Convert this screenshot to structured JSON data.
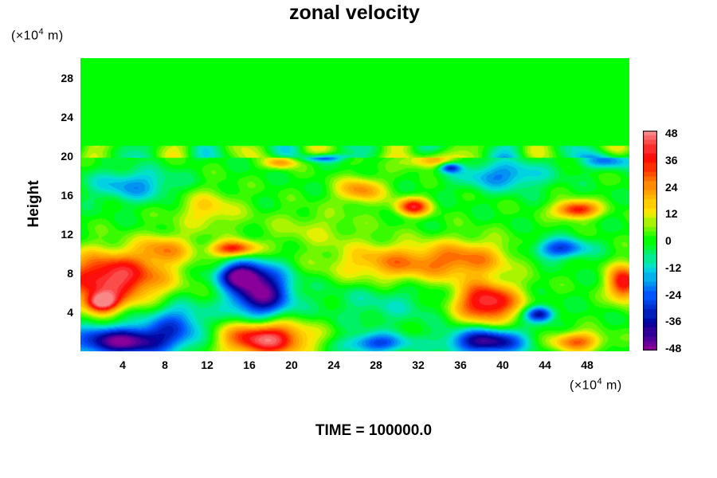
{
  "chart_data": {
    "type": "heatmap",
    "title": "zonal velocity",
    "ylabel": "Height",
    "y_unit": {
      "prefix": "(×10",
      "exp": "4",
      "suffix": " m)"
    },
    "x_unit": {
      "prefix": "(×10",
      "exp": "4",
      "suffix": " m)"
    },
    "footer": "TIME = 100000.0",
    "xlim": [
      0,
      52
    ],
    "ylim": [
      0,
      30
    ],
    "x_ticks": [
      4,
      8,
      12,
      16,
      20,
      24,
      28,
      32,
      36,
      40,
      44,
      48
    ],
    "y_ticks": [
      4,
      8,
      12,
      16,
      20,
      24,
      28
    ],
    "colorbar": {
      "range": [
        -48,
        48
      ],
      "ticks": [
        48,
        36,
        24,
        12,
        0,
        -12,
        -24,
        -36,
        -48
      ],
      "colors": [
        "#f88888",
        "#ff0000",
        "#ff8c00",
        "#ffee00",
        "#00ff00",
        "#00e0e0",
        "#0055ff",
        "#000099",
        "#880099"
      ]
    },
    "background_value": 0,
    "features": [
      {
        "x": 3,
        "y": 7.5,
        "value": 44,
        "rx": 5,
        "ry": 2.6
      },
      {
        "x": 2,
        "y": 5,
        "value": 42,
        "rx": 1.5,
        "ry": 1
      },
      {
        "x": 4,
        "y": 1,
        "value": -46,
        "rx": 5,
        "ry": 1.5
      },
      {
        "x": 17.5,
        "y": 1.3,
        "value": 46,
        "rx": 4,
        "ry": 1.8
      },
      {
        "x": 17,
        "y": 6,
        "value": -47,
        "rx": 2.8,
        "ry": 2.6
      },
      {
        "x": 15,
        "y": 7.8,
        "value": -38,
        "rx": 2,
        "ry": 1.2
      },
      {
        "x": 14.5,
        "y": 10.5,
        "value": 35,
        "rx": 2.2,
        "ry": 0.8
      },
      {
        "x": 9,
        "y": 3,
        "value": -22,
        "rx": 3,
        "ry": 2
      },
      {
        "x": 30,
        "y": 9,
        "value": 24,
        "rx": 6,
        "ry": 2
      },
      {
        "x": 37,
        "y": 9.5,
        "value": 20,
        "rx": 4,
        "ry": 2
      },
      {
        "x": 38.5,
        "y": 5,
        "value": 44,
        "rx": 3,
        "ry": 2
      },
      {
        "x": 43.5,
        "y": 3.8,
        "value": -38,
        "rx": 1.3,
        "ry": 0.8
      },
      {
        "x": 38.5,
        "y": 1,
        "value": -42,
        "rx": 3.5,
        "ry": 1.3
      },
      {
        "x": 51.5,
        "y": 7,
        "value": 40,
        "rx": 1.5,
        "ry": 1.8
      },
      {
        "x": 47,
        "y": 14.5,
        "value": 38,
        "rx": 2,
        "ry": 0.9
      },
      {
        "x": 31.5,
        "y": 14.8,
        "value": 36,
        "rx": 1.6,
        "ry": 0.9
      },
      {
        "x": 26.5,
        "y": 16.5,
        "value": 24,
        "rx": 2.2,
        "ry": 1.3
      },
      {
        "x": 45.5,
        "y": 10.5,
        "value": -28,
        "rx": 2.5,
        "ry": 1
      },
      {
        "x": 47,
        "y": 1,
        "value": 28,
        "rx": 2.5,
        "ry": 1
      },
      {
        "x": 28,
        "y": 0.8,
        "value": -26,
        "rx": 3,
        "ry": 1
      },
      {
        "x": 40,
        "y": 18,
        "value": -20,
        "rx": 4,
        "ry": 1.5
      },
      {
        "x": 5,
        "y": 17,
        "value": -18,
        "rx": 4,
        "ry": 1.6
      },
      {
        "x": 12,
        "y": 14.5,
        "value": 15,
        "rx": 3,
        "ry": 2
      },
      {
        "x": 19,
        "y": 19.3,
        "value": 22,
        "rx": 1.5,
        "ry": 0.6
      },
      {
        "x": 33,
        "y": 19.5,
        "value": 20,
        "rx": 2.5,
        "ry": 0.8
      },
      {
        "x": 35,
        "y": 18.8,
        "value": -30,
        "rx": 1,
        "ry": 0.5
      },
      {
        "x": 50,
        "y": 19.5,
        "value": -20,
        "rx": 2.5,
        "ry": 0.8
      },
      {
        "x": 23,
        "y": 19.8,
        "value": -22,
        "rx": 2,
        "ry": 0.4
      },
      {
        "x": 22,
        "y": 12.5,
        "value": 8,
        "rx": 5,
        "ry": 2
      },
      {
        "x": 29,
        "y": 5,
        "value": -8,
        "rx": 6,
        "ry": 2.5
      },
      {
        "x": 8,
        "y": 10.5,
        "value": 20,
        "rx": 2.5,
        "ry": 1.5
      }
    ]
  }
}
